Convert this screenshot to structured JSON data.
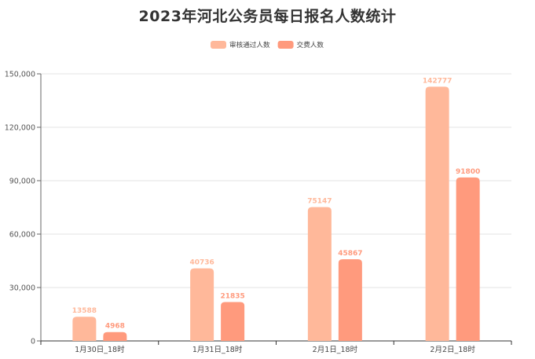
{
  "chart_data": {
    "type": "bar",
    "title": "2023年河北公务员每日报名人数统计",
    "categories": [
      "1月30日_18时",
      "1月31日_18时",
      "2月1日_18时",
      "2月2日_18时"
    ],
    "series": [
      {
        "name": "审核通过人数",
        "values": [
          13588,
          40736,
          75147,
          142777
        ],
        "color": "#FFB89A"
      },
      {
        "name": "交费人数",
        "values": [
          4968,
          21835,
          45867,
          91800
        ],
        "color": "#FF9A7D"
      }
    ],
    "y_ticks": [
      "0",
      "30,000",
      "60,000",
      "90,000",
      "120,000",
      "150,000"
    ],
    "ylim": [
      0,
      150000
    ],
    "grid": true,
    "legend_position": "top-center",
    "xlabel": "",
    "ylabel": ""
  }
}
